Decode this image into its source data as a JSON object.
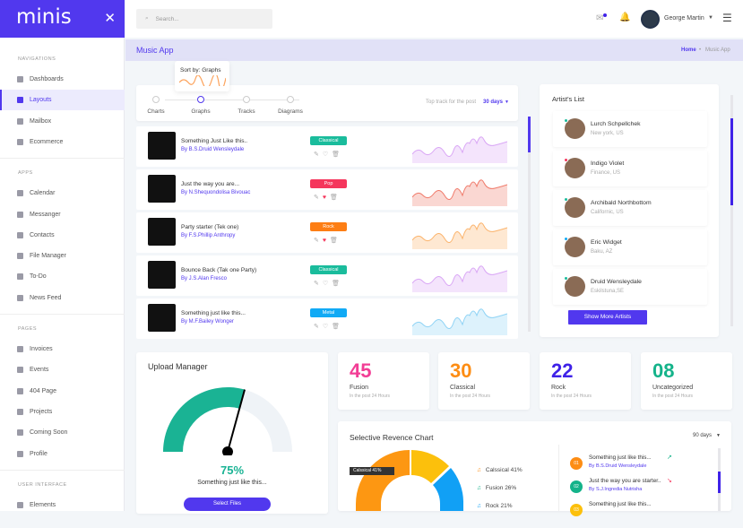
{
  "brand": "minis",
  "sidebar": {
    "sections": [
      "NAVIGATIONS",
      "APPS",
      "PAGES",
      "USER INTERFACE"
    ],
    "nav": [
      "Dashboards",
      "Layouts",
      "Mailbox",
      "Ecommerce"
    ],
    "apps": [
      "Calendar",
      "Messanger",
      "Contacts",
      "File Manager",
      "To-Do",
      "News Feed"
    ],
    "pages": [
      "Invoices",
      "Events",
      "404 Page",
      "Projects",
      "Coming Soon",
      "Profile"
    ],
    "ui": [
      "Elements"
    ]
  },
  "topbar": {
    "search_placeholder": "Search...",
    "user": "George Martin"
  },
  "page": {
    "title": "Music App",
    "crumb_home": "Home",
    "crumb_sep": "•",
    "crumb_current": "Music App"
  },
  "tooltip": "Sort by: Graphs",
  "steps": [
    "Charts",
    "Graphs",
    "Tracks",
    "Diagrams"
  ],
  "top_track": {
    "label": "Top track for the post",
    "value": "30 days"
  },
  "tracks": [
    {
      "title": "Something Just Like this..",
      "artist": "By B.S.Druid Wensleydale",
      "genre": "Classical",
      "color": "#1abc9c",
      "liked": false,
      "spark": "#d9a6f5"
    },
    {
      "title": "Just the way you are...",
      "artist": "By N.Shequondolisa Bivouac",
      "genre": "Pop",
      "color": "#f5365c",
      "liked": true,
      "spark": "#f07a6a"
    },
    {
      "title": "Party starter (Tek one)",
      "artist": "By F.S.Phillip Anthropy",
      "genre": "Rock",
      "color": "#fd7e14",
      "liked": true,
      "spark": "#fbb36b"
    },
    {
      "title": "Bounce Back (Tak one Party)",
      "artist": "By J.S.Alan Fresco",
      "genre": "Classical",
      "color": "#1abc9c",
      "liked": false,
      "spark": "#d9a6f5"
    },
    {
      "title": "Something just like this...",
      "artist": "By M.F.Bailey Wonger",
      "genre": "Metal",
      "color": "#11aaf5",
      "liked": false,
      "spark": "#8fd3f5"
    }
  ],
  "artists": {
    "title": "Artist's List",
    "button": "Show More Artists",
    "items": [
      {
        "name": "Lurch Schpellchek",
        "loc": "New york, US",
        "status": "#1abc9c"
      },
      {
        "name": "Indigo Violet",
        "loc": "Finance, US",
        "status": "#f5365c"
      },
      {
        "name": "Archibald Northbottom",
        "loc": "Californic, US",
        "status": "#1abc9c"
      },
      {
        "name": "Eric Widget",
        "loc": "Baku, AZ",
        "status": "#11aaf5"
      },
      {
        "name": "Druid Wensleydale",
        "loc": "Eskilstuna,SE",
        "status": "#1abc9c"
      }
    ]
  },
  "upload": {
    "title": "Upload Manager",
    "percent": 75,
    "percent_label": "75%",
    "caption": "Something just like this...",
    "button": "Select Files"
  },
  "stats": [
    {
      "value": "45",
      "label": "Fusion",
      "sub": "In the post 24 Hours",
      "color": "#f23d95"
    },
    {
      "value": "30",
      "label": "Classical",
      "sub": "In the post 24 Hours",
      "color": "#fd8d14"
    },
    {
      "value": "22",
      "label": "Rock",
      "sub": "In the post 24 Hours",
      "color": "#3f22e8"
    },
    {
      "value": "08",
      "label": "Uncategorized",
      "sub": "In the post 24 Hours",
      "color": "#14b38a"
    }
  ],
  "revenue": {
    "title": "Selective Revence Chart",
    "range": "90 days",
    "tooltip": "Calssical 41%",
    "legend": [
      {
        "label": "Calssical 41%",
        "color": "#fd8d14"
      },
      {
        "label": "Fusion 26%",
        "color": "#14b38a"
      },
      {
        "label": "Rock 21%",
        "color": "#11a0f5"
      }
    ]
  },
  "toplist": [
    {
      "num": "01",
      "title": "Something just like this...",
      "artist": "By B.S.Druid Wensleydale",
      "color": "#fd8d14",
      "trend": "↗",
      "trend_color": "#14b38a"
    },
    {
      "num": "02",
      "title": "Just the way you are starter..",
      "artist": "By S.J.Ingredia Nutrisha",
      "color": "#14b38a",
      "trend": "↘",
      "trend_color": "#f5365c"
    },
    {
      "num": "03",
      "title": "Something just like this...",
      "artist": "",
      "color": "#fcc00c",
      "trend": "",
      "trend_color": ""
    }
  ]
}
